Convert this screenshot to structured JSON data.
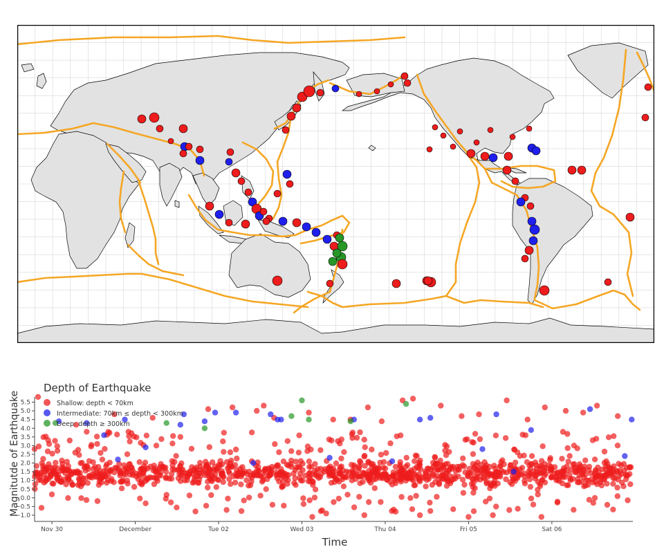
{
  "map": {
    "land_color": "#e2e2e2",
    "ocean_color": "#ffffff",
    "plate_boundary_color": "#f5a623",
    "grid_color": "#d6d6d6",
    "border_color": "#000000",
    "projection": "equirectangular, centered on 180° longitude",
    "graticule_step_deg": 10,
    "regions": [
      "north-america",
      "south-america",
      "greenland",
      "europe-asia",
      "africa",
      "arabia",
      "india",
      "southeast-asia",
      "japan",
      "philippines",
      "borneo",
      "sumatra",
      "java",
      "new-guinea",
      "australia",
      "new-zealand",
      "antarctica",
      "madagascar",
      "britain",
      "iceland",
      "sri-lanka",
      "cuba",
      "hawaii",
      "alaska",
      "kamchatka"
    ],
    "plate_boundaries": [
      "mid-atlantic-ridge",
      "pacific-ring-north",
      "aleutian-arc",
      "cascadia",
      "east-pacific-rise",
      "andes-trench",
      "scotia-arc",
      "south-america-antarctic",
      "pacific-antarctic-ridge",
      "australian-antarctic-ridge",
      "southeast-indian-ridge",
      "southwest-indian-ridge",
      "central-indian-ridge",
      "red-sea-rift",
      "alpine-himalayan-belt",
      "indonesian-arc",
      "tonga-kermadec",
      "new-guinea-loop",
      "philippine-plate",
      "japan-trench",
      "izu-bonin-mariana",
      "caribbean-plate",
      "cocos-plate",
      "arctic-ridge",
      "east-african-rift",
      "mid-atlantic-north",
      "macquarie-ridge"
    ],
    "legend_colors": {
      "shallow": "#ee1c1c",
      "intermediate": "#1f1fee",
      "deep": "#279727"
    }
  },
  "chart_data": {
    "type": "scatter",
    "title": "Depth of Earthquake",
    "xlabel": "Time",
    "ylabel": "Magnitutde of Earthquake",
    "xlim": [
      "2025-11-29T19:00",
      "2025-12-06T23:20"
    ],
    "ylim": [
      -1.2,
      5.8
    ],
    "x_ticks": [
      {
        "label": "Nov 30",
        "at": "2025-11-30T00:00"
      },
      {
        "label": "December",
        "at": "2025-12-01T00:00"
      },
      {
        "label": "Tue 02",
        "at": "2025-12-02T00:00"
      },
      {
        "label": "Wed 03",
        "at": "2025-12-03T00:00"
      },
      {
        "label": "Thu 04",
        "at": "2025-12-04T00:00"
      },
      {
        "label": "Fri 05",
        "at": "2025-12-05T00:00"
      },
      {
        "label": "Sat 06",
        "at": "2025-12-06T00:00"
      }
    ],
    "y_ticks": [
      "−1.0",
      "−0.5",
      "0.0",
      "0.5",
      "1.0",
      "1.5",
      "2.0",
      "2.5",
      "3.0",
      "3.5",
      "4.0",
      "4.5",
      "5.0",
      "5.5"
    ],
    "legend_placement": "top-left",
    "grid": false,
    "series": [
      {
        "name": "Shallow: depth < 70km",
        "color": "#ee1c1c",
        "dense_band": [
          0.3,
          2.4
        ],
        "notable": [
          {
            "x": "2025-11-29T20:00",
            "y": 5.8
          },
          {
            "x": "2025-11-30T07:00",
            "y": 4.2
          },
          {
            "x": "2025-11-30T10:00",
            "y": 3.8
          },
          {
            "x": "2025-11-30T18:00",
            "y": 4.8
          },
          {
            "x": "2025-12-01T05:00",
            "y": 4.6
          },
          {
            "x": "2025-12-01T13:00",
            "y": 3.5
          },
          {
            "x": "2025-12-01T21:00",
            "y": 5.1
          },
          {
            "x": "2025-12-02T04:00",
            "y": 5.2
          },
          {
            "x": "2025-12-02T11:00",
            "y": 5.0
          },
          {
            "x": "2025-12-02T13:00",
            "y": 5.3
          },
          {
            "x": "2025-12-02T16:00",
            "y": 4.6
          },
          {
            "x": "2025-12-03T02:00",
            "y": 4.9
          },
          {
            "x": "2025-12-03T09:00",
            "y": 4.5
          },
          {
            "x": "2025-12-03T14:00",
            "y": 4.5
          },
          {
            "x": "2025-12-03T19:00",
            "y": 5.2
          },
          {
            "x": "2025-12-03T23:00",
            "y": 4.4
          },
          {
            "x": "2025-12-04T05:00",
            "y": 5.6
          },
          {
            "x": "2025-12-04T08:00",
            "y": 5.7
          },
          {
            "x": "2025-12-04T16:00",
            "y": 5.3
          },
          {
            "x": "2025-12-04T22:00",
            "y": 4.7
          },
          {
            "x": "2025-12-05T03:00",
            "y": 4.8
          },
          {
            "x": "2025-12-05T11:00",
            "y": 5.6
          },
          {
            "x": "2025-12-05T17:00",
            "y": 4.5
          },
          {
            "x": "2025-12-05T22:00",
            "y": 5.2
          },
          {
            "x": "2025-12-06T04:00",
            "y": 5.0
          },
          {
            "x": "2025-12-06T09:00",
            "y": 4.9
          },
          {
            "x": "2025-12-06T13:00",
            "y": 5.3
          },
          {
            "x": "2025-12-06T19:00",
            "y": 4.7
          },
          {
            "x": "2025-12-03T03:00",
            "y": -1.1
          },
          {
            "x": "2025-12-03T07:00",
            "y": -0.9
          },
          {
            "x": "2025-12-03T18:00",
            "y": -1.0
          },
          {
            "x": "2025-12-04T10:00",
            "y": -1.0
          },
          {
            "x": "2025-12-05T00:00",
            "y": -1.1
          },
          {
            "x": "2025-12-05T07:00",
            "y": -1.0
          },
          {
            "x": "2025-12-05T21:00",
            "y": -1.1
          },
          {
            "x": "2025-12-04T03:00",
            "y": -0.8
          }
        ]
      },
      {
        "name": "Intermediate: 70km ≤ depth < 300km",
        "color": "#1f1fee",
        "notable": [
          {
            "x": "2025-11-30T02:00",
            "y": 4.4
          },
          {
            "x": "2025-11-30T10:00",
            "y": 4.3
          },
          {
            "x": "2025-11-30T15:00",
            "y": 3.6
          },
          {
            "x": "2025-11-30T21:00",
            "y": 4.5
          },
          {
            "x": "2025-12-01T13:00",
            "y": 4.2
          },
          {
            "x": "2025-12-01T14:00",
            "y": 4.8
          },
          {
            "x": "2025-12-01T20:00",
            "y": 4.4
          },
          {
            "x": "2025-12-01T23:00",
            "y": 4.9
          },
          {
            "x": "2025-12-02T05:00",
            "y": 4.9
          },
          {
            "x": "2025-12-02T15:00",
            "y": 4.8
          },
          {
            "x": "2025-12-02T17:00",
            "y": 4.5
          },
          {
            "x": "2025-12-02T18:00",
            "y": 4.5
          },
          {
            "x": "2025-12-03T15:00",
            "y": 4.5
          },
          {
            "x": "2025-12-04T10:00",
            "y": 4.5
          },
          {
            "x": "2025-12-04T13:00",
            "y": 4.6
          },
          {
            "x": "2025-12-05T08:00",
            "y": 4.8
          },
          {
            "x": "2025-12-05T18:00",
            "y": 3.9
          },
          {
            "x": "2025-12-06T11:00",
            "y": 5.1
          },
          {
            "x": "2025-12-06T23:00",
            "y": 4.5
          },
          {
            "x": "2025-12-01T03:00",
            "y": 2.9
          },
          {
            "x": "2025-12-02T10:00",
            "y": 2.0
          },
          {
            "x": "2025-12-03T08:00",
            "y": 2.3
          },
          {
            "x": "2025-12-04T02:00",
            "y": 2.1
          },
          {
            "x": "2025-12-05T13:00",
            "y": 1.5
          },
          {
            "x": "2025-12-06T21:00",
            "y": 2.4
          },
          {
            "x": "2025-11-30T19:00",
            "y": 2.2
          },
          {
            "x": "2025-12-05T04:00",
            "y": 2.8
          }
        ]
      },
      {
        "name": "Deep: depth ≥ 300km",
        "color": "#279727",
        "notable": [
          {
            "x": "2025-11-30T01:00",
            "y": 4.3
          },
          {
            "x": "2025-12-01T09:00",
            "y": 4.3
          },
          {
            "x": "2025-12-01T20:00",
            "y": 4.0
          },
          {
            "x": "2025-12-02T21:00",
            "y": 4.7
          },
          {
            "x": "2025-12-03T00:00",
            "y": 5.6
          },
          {
            "x": "2025-12-03T02:00",
            "y": 4.5
          },
          {
            "x": "2025-12-03T14:00",
            "y": 4.4
          },
          {
            "x": "2025-12-04T06:00",
            "y": 5.4
          }
        ]
      }
    ]
  }
}
